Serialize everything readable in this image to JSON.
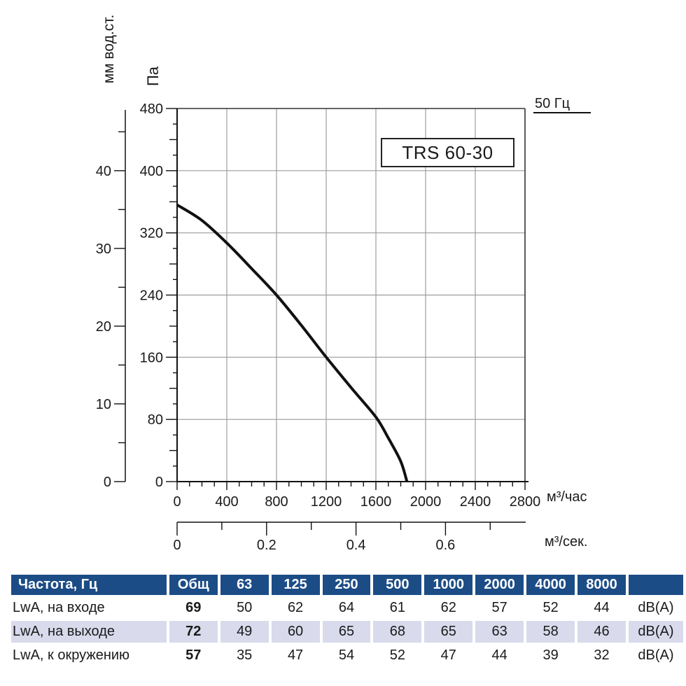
{
  "chart_data": {
    "type": "line",
    "title": "TRS 60-30",
    "annotation": "50 Гц",
    "grid": true,
    "series": [
      {
        "name": "TRS 60-30",
        "points": [
          [
            0,
            356
          ],
          [
            200,
            336
          ],
          [
            400,
            307
          ],
          [
            600,
            274
          ],
          [
            800,
            240
          ],
          [
            1000,
            201
          ],
          [
            1200,
            160
          ],
          [
            1400,
            121
          ],
          [
            1600,
            83
          ],
          [
            1700,
            56
          ],
          [
            1800,
            26
          ],
          [
            1850,
            0
          ]
        ]
      }
    ],
    "x_axis_primary": {
      "label": "м³/час",
      "min": 0,
      "max": 2800,
      "major_ticks": [
        0,
        400,
        800,
        1200,
        1600,
        2000,
        2400,
        2800
      ],
      "minor_step": 100
    },
    "x_axis_secondary": {
      "label": "м³/сек.",
      "min": 0,
      "max": 0.78,
      "labeled_ticks": [
        0,
        0.2,
        0.4,
        0.6
      ],
      "tick_step": 0.1
    },
    "y_axis_primary": {
      "label": "Па",
      "min": 0,
      "max": 480,
      "major_ticks": [
        0,
        80,
        160,
        240,
        320,
        400,
        480
      ],
      "medium_step": 40,
      "minor_step": 20
    },
    "y_axis_secondary": {
      "label": "мм вод.ст.",
      "min": 0,
      "max": 47.5,
      "major_ticks": [
        0,
        10,
        20,
        30,
        40
      ],
      "tick_step": 5
    }
  },
  "table": {
    "header": [
      "Частота, Гц",
      "Общ",
      "63",
      "125",
      "250",
      "500",
      "1000",
      "2000",
      "4000",
      "8000",
      ""
    ],
    "rows": [
      {
        "label": "LwA, на входе",
        "total": "69",
        "values": [
          "50",
          "62",
          "64",
          "61",
          "62",
          "57",
          "52",
          "44"
        ],
        "unit": "dB(A)"
      },
      {
        "label": "LwA, на выходе",
        "total": "72",
        "values": [
          "49",
          "60",
          "65",
          "68",
          "65",
          "63",
          "58",
          "46"
        ],
        "unit": "dB(A)"
      },
      {
        "label": "LwA, к окружению",
        "total": "57",
        "values": [
          "35",
          "47",
          "54",
          "52",
          "47",
          "44",
          "39",
          "32"
        ],
        "unit": "dB(A)"
      }
    ]
  },
  "colors": {
    "table_header_bg": "#1c4c86",
    "table_stripe_bg": "#d9dbec",
    "grid_line": "#9c9c9c",
    "axis_line": "#111111",
    "border_line": "#333333",
    "curve": "#111111",
    "text": "#1a1a1a"
  }
}
